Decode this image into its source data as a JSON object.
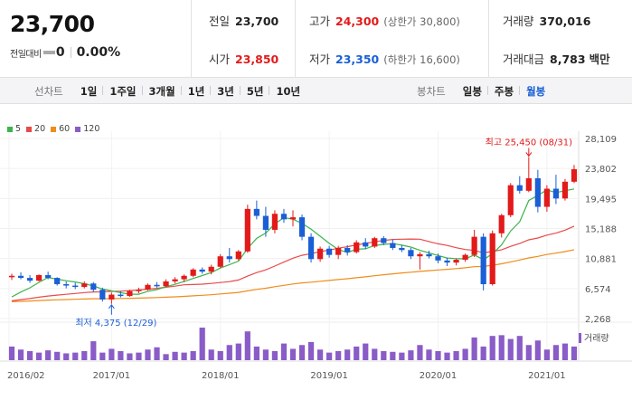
{
  "summary": {
    "current_price": "23,700",
    "change_label": "전일대비",
    "change_value": "0",
    "change_pct": "0.00%",
    "prev_close_label": "전일",
    "prev_close": "23,700",
    "high_label": "고가",
    "high": "24,300",
    "high_sub": "(상한가 30,800)",
    "volume_label": "거래량",
    "volume": "370,016",
    "open_label": "시가",
    "open": "23,850",
    "low_label": "저가",
    "low": "23,350",
    "low_sub": "(하한가 16,600)",
    "amount_label": "거래대금",
    "amount": "8,783",
    "amount_unit": "백만",
    "colors": {
      "up": "#e31a1a",
      "down": "#1a5fd6"
    }
  },
  "toolbar": {
    "line_chart_label": "선차트",
    "line_periods": [
      "1일",
      "1주일",
      "3개월",
      "1년",
      "3년",
      "5년",
      "10년"
    ],
    "candle_chart_label": "봉차트",
    "candle_periods": [
      "일봉",
      "주봉",
      "월봉"
    ],
    "active_candle_period": "월봉"
  },
  "chart_data": {
    "type": "candlestick",
    "legend": [
      {
        "name": "5",
        "color": "#3cb44b"
      },
      {
        "name": "20",
        "color": "#e84a4a"
      },
      {
        "name": "60",
        "color": "#f08c1a"
      },
      {
        "name": "120",
        "color": "#8a5cc7"
      }
    ],
    "y_ticks": [
      "28,109",
      "23,802",
      "19,495",
      "15,188",
      "10,881",
      "6,574",
      "2,268"
    ],
    "y_range": [
      2268,
      28109
    ],
    "x_ticks": [
      "2016/02",
      "2017/01",
      "2018/01",
      "2019/01",
      "2020/01",
      "2021/01"
    ],
    "max_annotation": "최고 25,450 (08/31)",
    "min_annotation": "최저 4,375 (12/29)",
    "volume_label": "거래량",
    "colors": {
      "up": "#e31a1a",
      "down": "#1a5fd6",
      "ma5": "#3cb44b",
      "ma20": "#e84a4a",
      "ma60": "#f08c1a",
      "volume": "#8a5cc7"
    },
    "candles": [
      [
        8200,
        8700,
        7800,
        8400
      ],
      [
        8400,
        8900,
        7900,
        8100
      ],
      [
        8100,
        8500,
        7400,
        7700
      ],
      [
        7700,
        8600,
        7600,
        8500
      ],
      [
        8500,
        9000,
        7900,
        8100
      ],
      [
        8100,
        8200,
        7000,
        7200
      ],
      [
        7200,
        7600,
        6600,
        7000
      ],
      [
        7000,
        7400,
        6500,
        6800
      ],
      [
        6800,
        7600,
        6600,
        7300
      ],
      [
        7300,
        7500,
        6100,
        6400
      ],
      [
        6400,
        6700,
        4700,
        5000
      ],
      [
        5000,
        6000,
        4375,
        5700
      ],
      [
        5700,
        6200,
        5300,
        5500
      ],
      [
        5500,
        6400,
        5400,
        6200
      ],
      [
        6200,
        6700,
        5900,
        6400
      ],
      [
        6400,
        7300,
        6300,
        7100
      ],
      [
        7100,
        7500,
        6700,
        6900
      ],
      [
        6900,
        7900,
        6800,
        7600
      ],
      [
        7600,
        8200,
        7300,
        7900
      ],
      [
        7900,
        8600,
        7500,
        8400
      ],
      [
        8400,
        9500,
        8200,
        9300
      ],
      [
        9300,
        9600,
        8700,
        9000
      ],
      [
        9000,
        10000,
        8600,
        9700
      ],
      [
        9700,
        11500,
        9500,
        11200
      ],
      [
        11200,
        12400,
        10300,
        10800
      ],
      [
        10800,
        12100,
        10600,
        11900
      ],
      [
        11900,
        18600,
        11700,
        18000
      ],
      [
        18000,
        19200,
        16500,
        17000
      ],
      [
        17000,
        18300,
        14000,
        15000
      ],
      [
        15000,
        17800,
        14500,
        17300
      ],
      [
        17300,
        18000,
        16000,
        16500
      ],
      [
        16500,
        17800,
        15500,
        16800
      ],
      [
        16800,
        17200,
        13500,
        14000
      ],
      [
        14000,
        14500,
        10300,
        10800
      ],
      [
        10800,
        12600,
        10400,
        12300
      ],
      [
        12300,
        12700,
        11000,
        11400
      ],
      [
        11400,
        12700,
        10800,
        12400
      ],
      [
        12400,
        12800,
        11300,
        11800
      ],
      [
        11800,
        13500,
        11600,
        13200
      ],
      [
        13200,
        13800,
        12200,
        12600
      ],
      [
        12600,
        14000,
        12400,
        13800
      ],
      [
        13800,
        14100,
        12800,
        13100
      ],
      [
        13100,
        13600,
        12100,
        12400
      ],
      [
        12400,
        12800,
        11800,
        12100
      ],
      [
        12100,
        12400,
        10800,
        11200
      ],
      [
        11200,
        11800,
        9300,
        11500
      ],
      [
        11500,
        12000,
        10900,
        11200
      ],
      [
        11200,
        11600,
        10200,
        10600
      ],
      [
        10600,
        11000,
        9800,
        10300
      ],
      [
        10300,
        10900,
        9900,
        10700
      ],
      [
        10700,
        11600,
        10400,
        11400
      ],
      [
        11400,
        15000,
        11100,
        14000
      ],
      [
        14000,
        14500,
        6300,
        7200
      ],
      [
        7200,
        14900,
        7000,
        14500
      ],
      [
        14500,
        17300,
        13900,
        17100
      ],
      [
        17100,
        21700,
        16800,
        21400
      ],
      [
        21400,
        22700,
        20200,
        20600
      ],
      [
        20600,
        25450,
        20400,
        22400
      ],
      [
        22400,
        23600,
        17500,
        18300
      ],
      [
        18300,
        21400,
        17600,
        20900
      ],
      [
        20900,
        22900,
        18700,
        19500
      ],
      [
        19500,
        22300,
        19200,
        21900
      ],
      [
        21900,
        24300,
        21700,
        23700
      ]
    ],
    "volumes": [
      18,
      14,
      12,
      10,
      13,
      11,
      9,
      10,
      12,
      25,
      10,
      15,
      12,
      9,
      10,
      14,
      17,
      8,
      11,
      10,
      12,
      43,
      14,
      12,
      20,
      22,
      38,
      18,
      14,
      12,
      22,
      15,
      20,
      24,
      14,
      10,
      12,
      14,
      18,
      22,
      15,
      12,
      11,
      10,
      13,
      20,
      14,
      12,
      10,
      12,
      15,
      30,
      18,
      32,
      33,
      28,
      32,
      20,
      26,
      14,
      20,
      22,
      18
    ]
  }
}
